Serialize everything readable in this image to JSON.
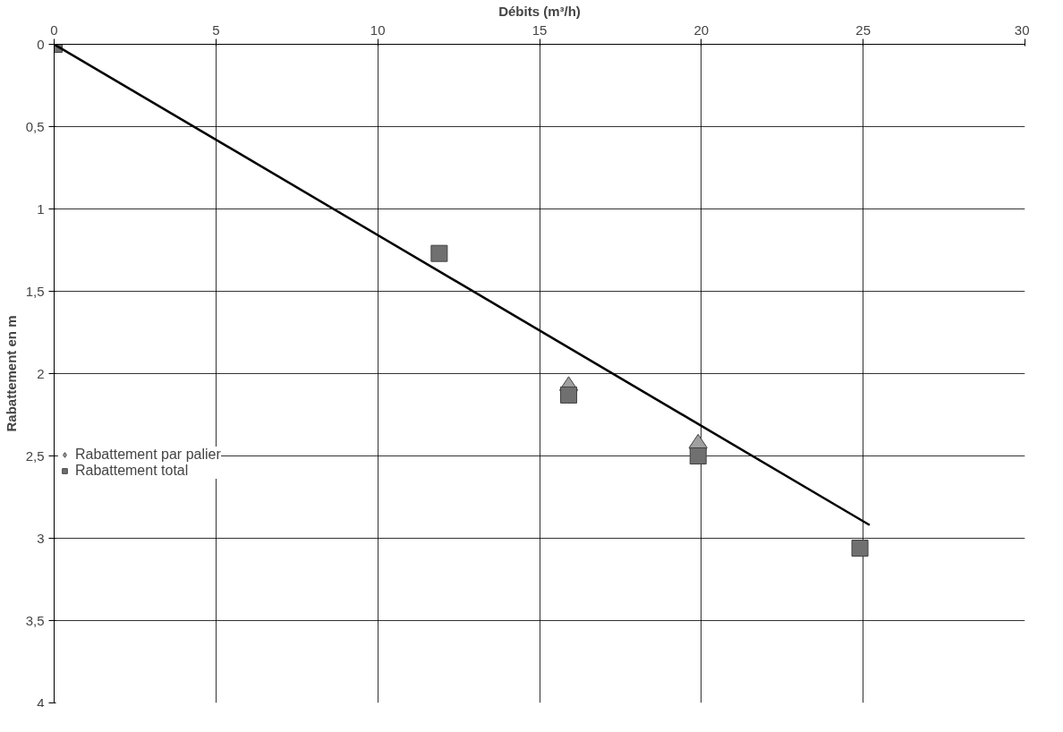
{
  "chart_data": {
    "type": "scatter",
    "xlabel": "Débits (m³/h)",
    "ylabel": "Rabattement en m",
    "xlim": [
      0,
      30
    ],
    "xticks": [
      0,
      5,
      10,
      15,
      20,
      25,
      30
    ],
    "ylim": [
      4,
      0
    ],
    "yticks": [
      0,
      {
        "value": 0.5,
        "label": "0,5"
      },
      1,
      {
        "value": 1.5,
        "label": "1,5"
      },
      2,
      {
        "value": 2.5,
        "label": "2,5"
      },
      3,
      {
        "value": 3.5,
        "label": "3,5"
      },
      4
    ],
    "grid": true,
    "legend": "left",
    "series": [
      {
        "name": "Rabattement par palier",
        "marker": "diamond",
        "color": "#a0a0a0",
        "x": [
          15.9,
          19.9
        ],
        "values": [
          2.1,
          2.45
        ]
      },
      {
        "name": "Rabattement total",
        "marker": "square",
        "color": "#707070",
        "x": [
          0,
          11.9,
          15.9,
          19.9,
          24.9
        ],
        "values": [
          0,
          1.27,
          2.13,
          2.5,
          3.06
        ]
      },
      {
        "type": "line",
        "line_style": "solid",
        "color": "#000000",
        "x": [
          0,
          25.2
        ],
        "values": [
          0,
          2.92
        ]
      }
    ]
  }
}
